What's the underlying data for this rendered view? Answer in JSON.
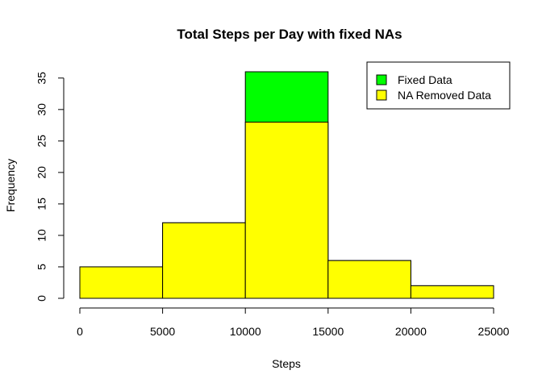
{
  "chart_data": {
    "type": "bar",
    "title": "Total Steps per Day with fixed NAs",
    "xlabel": "Steps",
    "ylabel": "Frequency",
    "xlim": [
      0,
      25000
    ],
    "ylim": [
      0,
      36
    ],
    "x_ticks": [
      0,
      5000,
      10000,
      15000,
      20000,
      25000
    ],
    "y_ticks": [
      0,
      5,
      10,
      15,
      20,
      25,
      30,
      35
    ],
    "grid": false,
    "legend_position": "top-right",
    "bins": [
      {
        "start": 0,
        "end": 5000
      },
      {
        "start": 5000,
        "end": 10000
      },
      {
        "start": 10000,
        "end": 15000
      },
      {
        "start": 15000,
        "end": 20000
      },
      {
        "start": 20000,
        "end": 25000
      }
    ],
    "series": [
      {
        "name": "Fixed Data",
        "color": "#00ff00",
        "values": [
          5,
          12,
          36,
          6,
          2
        ]
      },
      {
        "name": "NA Removed Data",
        "color": "#ffff00",
        "values": [
          5,
          12,
          28,
          6,
          2
        ]
      }
    ]
  }
}
